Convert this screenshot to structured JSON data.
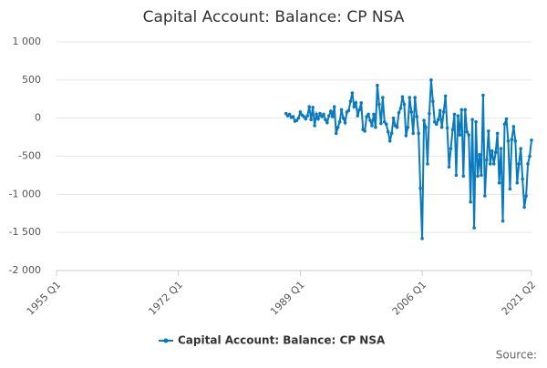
{
  "chart_data": {
    "type": "line",
    "title": "Capital Account: Balance: CP NSA",
    "source": "Source:",
    "x": [
      "1987 Q1",
      "1987 Q2",
      "1987 Q3",
      "1987 Q4",
      "1988 Q1",
      "1988 Q2",
      "1988 Q3",
      "1988 Q4",
      "1989 Q1",
      "1989 Q2",
      "1989 Q3",
      "1989 Q4",
      "1990 Q1",
      "1990 Q2",
      "1990 Q3",
      "1990 Q4",
      "1991 Q1",
      "1991 Q2",
      "1991 Q3",
      "1991 Q4",
      "1992 Q1",
      "1992 Q2",
      "1992 Q3",
      "1992 Q4",
      "1993 Q1",
      "1993 Q2",
      "1993 Q3",
      "1993 Q4",
      "1994 Q1",
      "1994 Q2",
      "1994 Q3",
      "1994 Q4",
      "1995 Q1",
      "1995 Q2",
      "1995 Q3",
      "1995 Q4",
      "1996 Q1",
      "1996 Q2",
      "1996 Q3",
      "1996 Q4",
      "1997 Q1",
      "1997 Q2",
      "1997 Q3",
      "1997 Q4",
      "1998 Q1",
      "1998 Q2",
      "1998 Q3",
      "1998 Q4",
      "1999 Q1",
      "1999 Q2",
      "1999 Q3",
      "1999 Q4",
      "2000 Q1",
      "2000 Q2",
      "2000 Q3",
      "2000 Q4",
      "2001 Q1",
      "2001 Q2",
      "2001 Q3",
      "2001 Q4",
      "2002 Q1",
      "2002 Q2",
      "2002 Q3",
      "2002 Q4",
      "2003 Q1",
      "2003 Q2",
      "2003 Q3",
      "2003 Q4",
      "2004 Q1",
      "2004 Q2",
      "2004 Q3",
      "2004 Q4",
      "2005 Q1",
      "2005 Q2",
      "2005 Q3",
      "2005 Q4",
      "2006 Q1",
      "2006 Q2",
      "2006 Q3",
      "2006 Q4",
      "2007 Q1",
      "2007 Q2",
      "2007 Q3",
      "2007 Q4",
      "2008 Q1",
      "2008 Q2",
      "2008 Q3",
      "2008 Q4",
      "2009 Q1",
      "2009 Q2",
      "2009 Q3",
      "2009 Q4",
      "2010 Q1",
      "2010 Q2",
      "2010 Q3",
      "2010 Q4",
      "2011 Q1",
      "2011 Q2",
      "2011 Q3",
      "2011 Q4",
      "2012 Q1",
      "2012 Q2",
      "2012 Q3",
      "2012 Q4",
      "2013 Q1",
      "2013 Q2",
      "2013 Q3",
      "2013 Q4",
      "2014 Q1",
      "2014 Q2",
      "2014 Q3",
      "2014 Q4",
      "2015 Q1",
      "2015 Q2",
      "2015 Q3",
      "2015 Q4",
      "2016 Q1",
      "2016 Q2",
      "2016 Q3",
      "2016 Q4",
      "2017 Q1",
      "2017 Q2",
      "2017 Q3",
      "2017 Q4",
      "2018 Q1",
      "2018 Q2",
      "2018 Q3",
      "2018 Q4",
      "2019 Q1",
      "2019 Q2",
      "2019 Q3",
      "2019 Q4",
      "2020 Q1",
      "2020 Q2",
      "2020 Q3",
      "2020 Q4",
      "2021 Q1",
      "2021 Q2"
    ],
    "series": [
      {
        "name": "Capital Account: Balance: CP NSA",
        "color": "#0a7abf",
        "values": [
          60,
          30,
          50,
          10,
          20,
          -40,
          -30,
          0,
          80,
          40,
          20,
          -10,
          30,
          150,
          -20,
          140,
          -100,
          50,
          -10,
          60,
          20,
          50,
          -20,
          -60,
          30,
          90,
          20,
          150,
          -200,
          -120,
          -50,
          110,
          0,
          -60,
          80,
          100,
          220,
          330,
          150,
          200,
          30,
          110,
          200,
          -150,
          -170,
          20,
          50,
          -30,
          -100,
          50,
          -120,
          430,
          180,
          -70,
          270,
          -50,
          -80,
          -180,
          -300,
          -200,
          0,
          -100,
          -120,
          70,
          130,
          280,
          180,
          -230,
          -120,
          270,
          80,
          -200,
          270,
          20,
          -200,
          -920,
          -1580,
          -30,
          -120,
          -600,
          60,
          500,
          220,
          -50,
          -80,
          -20,
          100,
          -120,
          80,
          290,
          -130,
          -640,
          -400,
          -150,
          50,
          -750,
          30,
          -220,
          110,
          -760,
          110,
          -180,
          -220,
          -1100,
          -20,
          -1440,
          -50,
          -760,
          -480,
          -750,
          300,
          -1020,
          -550,
          -170,
          -600,
          -430,
          -600,
          -450,
          -200,
          -850,
          -400,
          -1350,
          -80,
          -10,
          -300,
          -930,
          -280,
          -110,
          -300,
          -850,
          -600,
          -400,
          -800,
          -1170,
          -1020,
          -600,
          -500,
          -290
        ]
      }
    ],
    "xlim": [
      "1955 Q1",
      "2021 Q2"
    ],
    "xticks": [
      "1955 Q1",
      "1972 Q1",
      "1989 Q1",
      "2006 Q1",
      "2021 Q2"
    ],
    "ylim": [
      -2000,
      1000
    ],
    "yticks": [
      {
        "value": -2000,
        "label": "-2 000"
      },
      {
        "value": -1500,
        "label": "-1 500"
      },
      {
        "value": -1000,
        "label": "-1 000"
      },
      -500,
      0,
      500,
      {
        "value": 1000,
        "label": "1 000"
      }
    ],
    "grid": true,
    "legend": "bottom"
  }
}
